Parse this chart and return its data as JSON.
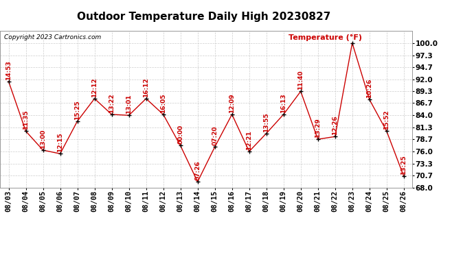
{
  "title": "Outdoor Temperature Daily High 20230827",
  "copyright": "Copyright 2023 Cartronics.com",
  "ylabel": "Temperature (°F)",
  "dates": [
    "08/03",
    "08/04",
    "08/05",
    "08/06",
    "08/07",
    "08/08",
    "08/09",
    "08/10",
    "08/11",
    "08/12",
    "08/13",
    "08/14",
    "08/15",
    "08/16",
    "08/17",
    "08/18",
    "08/19",
    "08/20",
    "08/21",
    "08/22",
    "08/23",
    "08/24",
    "08/25",
    "08/26"
  ],
  "values": [
    91.5,
    80.5,
    76.3,
    75.5,
    82.7,
    87.7,
    84.2,
    84.0,
    87.7,
    84.2,
    77.3,
    69.3,
    77.0,
    84.2,
    76.0,
    80.0,
    84.2,
    89.3,
    78.7,
    79.3,
    100.0,
    87.5,
    80.5,
    70.5
  ],
  "time_labels": [
    "14:53",
    "11:35",
    "13:00",
    "12:15",
    "15:25",
    "12:12",
    "13:22",
    "13:01",
    "16:12",
    "16:05",
    "00:00",
    "07:26",
    "07:20",
    "12:09",
    "12:21",
    "13:55",
    "16:13",
    "11:40",
    "13:29",
    "12:26",
    "",
    "10:26",
    "15:52",
    "13:25"
  ],
  "ylim": [
    68.0,
    102.7
  ],
  "yticks": [
    68.0,
    70.7,
    73.3,
    76.0,
    78.7,
    81.3,
    84.0,
    86.7,
    89.3,
    92.0,
    94.7,
    97.3,
    100.0
  ],
  "ytick_labels": [
    "68.0",
    "70.7",
    "73.3",
    "76.0",
    "78.7",
    "81.3",
    "84.0",
    "86.7",
    "89.3",
    "92.0",
    "94.7",
    "97.3",
    "100.0"
  ],
  "line_color": "#cc0000",
  "marker_color": "#000000",
  "label_color": "#cc0000",
  "grid_color": "#cccccc",
  "bg_color": "#ffffff",
  "title_fontsize": 11,
  "copyright_fontsize": 6.5,
  "tick_labelsize": 7.5,
  "annotation_fontsize": 6.5,
  "ylabel_fontsize": 8
}
